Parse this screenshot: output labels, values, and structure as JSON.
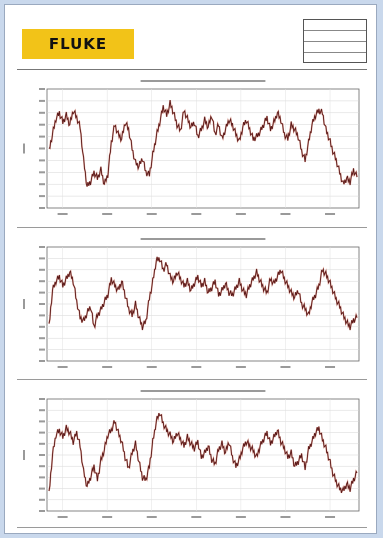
{
  "document": {
    "logo_text": "FLUKE",
    "info_rows": [
      "",
      "",
      "",
      ""
    ]
  },
  "chart_data": [
    {
      "type": "line",
      "title": "",
      "xlabel": "",
      "ylabel": "",
      "x_ticks": [
        "",
        "",
        "",
        "",
        "",
        "",
        ""
      ],
      "series": [
        {
          "color": "#5a1a1a",
          "values": [
            48,
            62,
            75,
            80,
            72,
            78,
            70,
            82,
            76,
            68,
            40,
            18,
            22,
            30,
            25,
            32,
            20,
            28,
            55,
            70,
            62,
            58,
            72,
            66,
            50,
            38,
            35,
            42,
            30,
            28,
            45,
            60,
            72,
            85,
            78,
            88,
            80,
            70,
            65,
            82,
            75,
            68,
            72,
            60,
            66,
            74,
            68,
            78,
            62,
            70,
            58,
            66,
            74,
            70,
            62,
            56,
            68,
            74,
            66,
            58,
            60,
            64,
            70,
            76,
            66,
            72,
            80,
            74,
            62,
            58,
            70,
            66,
            60,
            48,
            40,
            55,
            70,
            78,
            82,
            80,
            66,
            58,
            48,
            40,
            30,
            20,
            25,
            22,
            32,
            26
          ]
        }
      ]
    },
    {
      "type": "line",
      "title": "",
      "xlabel": "",
      "ylabel": "",
      "x_ticks": [
        "",
        "",
        "",
        "",
        "",
        "",
        ""
      ],
      "series": [
        {
          "color": "#5a1a1a",
          "values": [
            30,
            62,
            70,
            74,
            66,
            72,
            78,
            70,
            52,
            38,
            35,
            42,
            48,
            30,
            40,
            45,
            52,
            58,
            72,
            66,
            62,
            70,
            58,
            46,
            40,
            50,
            38,
            30,
            35,
            55,
            70,
            88,
            90,
            80,
            85,
            74,
            70,
            78,
            72,
            66,
            70,
            62,
            68,
            74,
            66,
            70,
            60,
            64,
            70,
            58,
            62,
            68,
            60,
            58,
            64,
            70,
            62,
            58,
            66,
            72,
            78,
            70,
            64,
            60,
            72,
            68,
            74,
            80,
            72,
            66,
            60,
            56,
            62,
            50,
            46,
            40,
            52,
            58,
            66,
            80,
            76,
            70,
            62,
            54,
            48,
            40,
            34,
            30,
            36,
            38
          ]
        }
      ]
    },
    {
      "type": "line",
      "title": "",
      "xlabel": "",
      "ylabel": "",
      "x_ticks": [
        "",
        "",
        "",
        "",
        "",
        "",
        ""
      ],
      "series": [
        {
          "color": "#5a1a1a",
          "values": [
            15,
            50,
            68,
            72,
            66,
            74,
            70,
            62,
            70,
            58,
            35,
            22,
            30,
            40,
            28,
            45,
            55,
            68,
            72,
            80,
            70,
            62,
            48,
            38,
            52,
            60,
            44,
            30,
            28,
            40,
            62,
            80,
            88,
            78,
            72,
            68,
            62,
            70,
            64,
            58,
            66,
            60,
            56,
            62,
            48,
            52,
            58,
            46,
            42,
            55,
            60,
            52,
            62,
            48,
            40,
            46,
            56,
            62,
            58,
            54,
            48,
            58,
            64,
            70,
            60,
            66,
            72,
            62,
            56,
            48,
            52,
            40,
            44,
            50,
            38,
            55,
            62,
            70,
            74,
            64,
            56,
            46,
            34,
            26,
            20,
            18,
            24,
            20,
            28,
            34
          ]
        }
      ]
    }
  ]
}
